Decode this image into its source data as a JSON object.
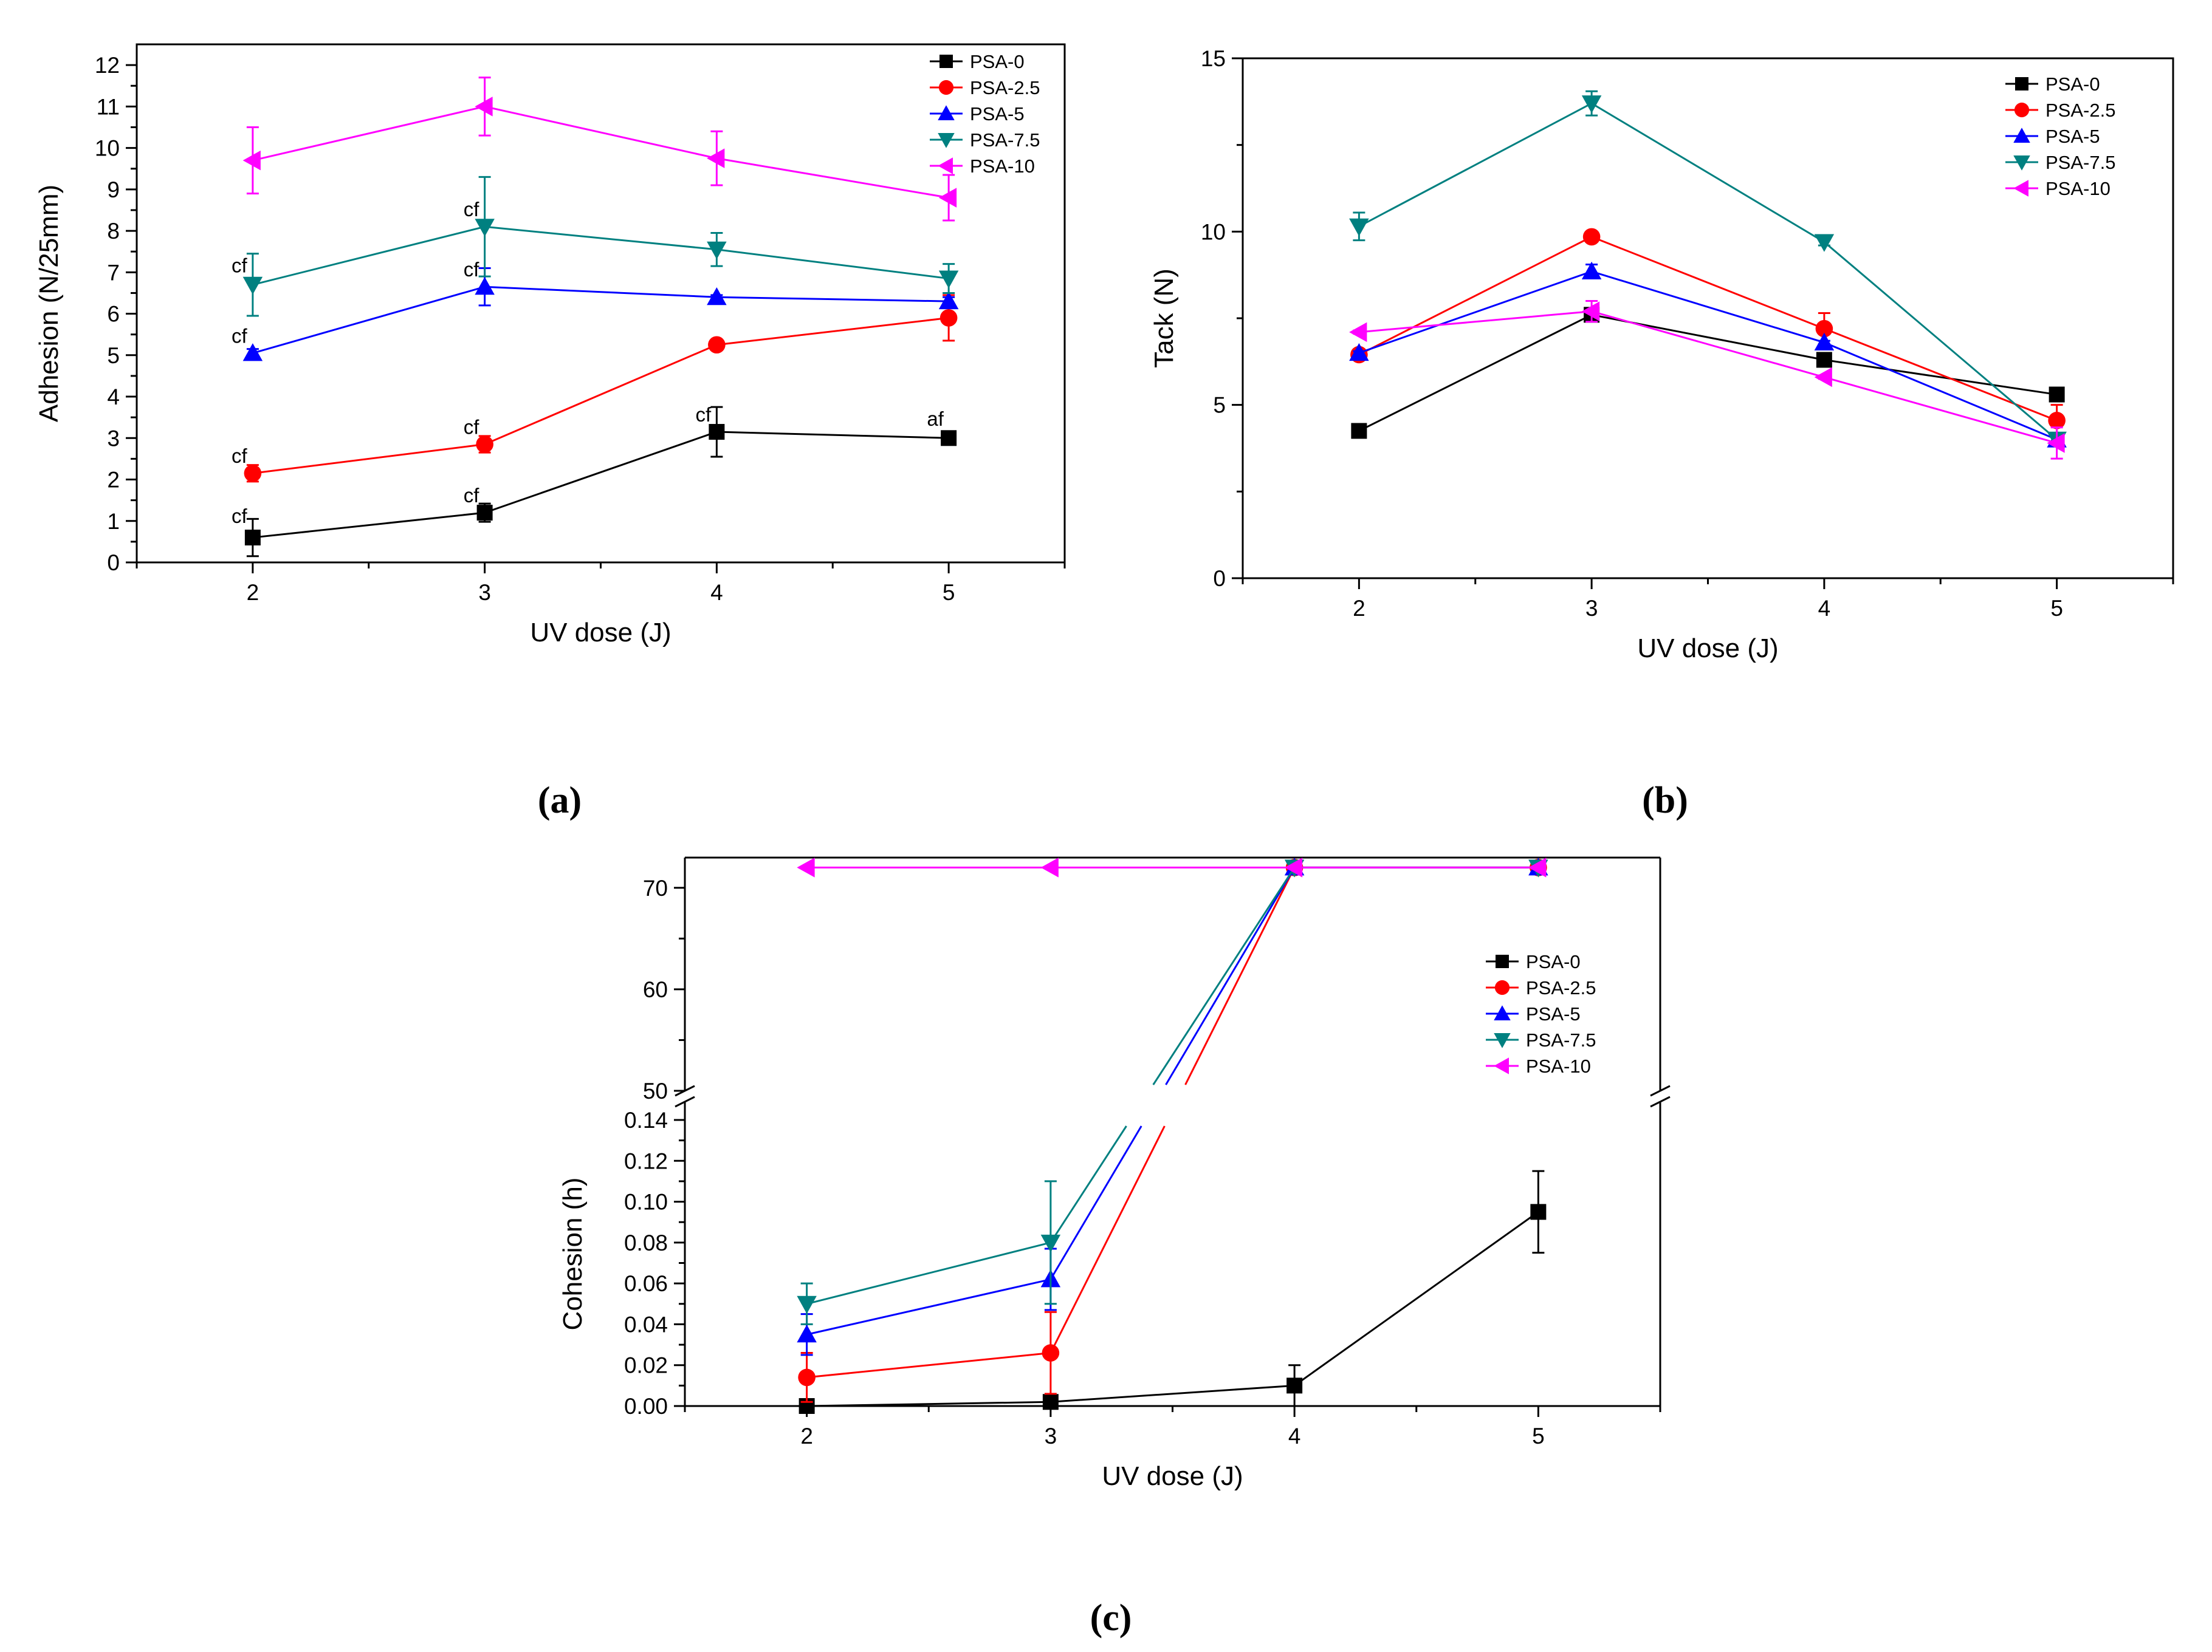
{
  "chart_data": [
    {
      "type": "line",
      "caption": "(a)",
      "xlabel": "UV dose (J)",
      "ylabel": "Adhesion (N/25mm)",
      "xlim": [
        1.5,
        5.5
      ],
      "ylim": [
        0,
        12.5
      ],
      "x_ticks": [
        2,
        3,
        4,
        5
      ],
      "y_ticks": [
        0,
        1,
        2,
        3,
        4,
        5,
        6,
        7,
        8,
        9,
        10,
        11,
        12
      ],
      "x": [
        2,
        3,
        4,
        5
      ],
      "legend_position": "top-right",
      "series": [
        {
          "name": "PSA-0",
          "color": "#000000",
          "marker": "square",
          "values": [
            0.6,
            1.2,
            3.15,
            3.0
          ],
          "errors": [
            0.45,
            0.22,
            0.6,
            0.05
          ]
        },
        {
          "name": "PSA-2.5",
          "color": "#ff0000",
          "marker": "circle",
          "values": [
            2.15,
            2.85,
            5.25,
            5.9
          ],
          "errors": [
            0.2,
            0.2,
            0.05,
            0.55
          ]
        },
        {
          "name": "PSA-5",
          "color": "#0000ff",
          "marker": "triangle-up",
          "values": [
            5.05,
            6.65,
            6.4,
            6.3
          ],
          "errors": [
            0.1,
            0.45,
            0.05,
            0.1
          ]
        },
        {
          "name": "PSA-7.5",
          "color": "#008080",
          "marker": "triangle-down",
          "values": [
            6.7,
            8.1,
            7.55,
            6.85
          ],
          "errors": [
            0.75,
            1.2,
            0.4,
            0.35
          ]
        },
        {
          "name": "PSA-10",
          "color": "#ff00ff",
          "marker": "triangle-left",
          "values": [
            9.7,
            11.0,
            9.75,
            8.8
          ],
          "errors": [
            0.8,
            0.7,
            0.65,
            0.55
          ]
        }
      ],
      "annotations": [
        {
          "text": "cf",
          "x": 2,
          "y": 0.95
        },
        {
          "text": "cf",
          "x": 3,
          "y": 1.45
        },
        {
          "text": "cf",
          "x": 4,
          "y": 3.4
        },
        {
          "text": "af",
          "x": 5,
          "y": 3.3
        },
        {
          "text": "cf",
          "x": 2,
          "y": 2.4
        },
        {
          "text": "cf",
          "x": 3,
          "y": 3.1
        },
        {
          "text": "cf",
          "x": 2,
          "y": 5.3
        },
        {
          "text": "cf",
          "x": 3,
          "y": 6.9
        },
        {
          "text": "cf",
          "x": 2,
          "y": 7.0
        },
        {
          "text": "cf",
          "x": 3,
          "y": 8.35
        }
      ]
    },
    {
      "type": "line",
      "caption": "(b)",
      "xlabel": "UV dose (J)",
      "ylabel": "Tack (N)",
      "xlim": [
        1.5,
        5.5
      ],
      "ylim": [
        0,
        15
      ],
      "x_ticks": [
        2,
        3,
        4,
        5
      ],
      "y_ticks": [
        0,
        5,
        10,
        15
      ],
      "x": [
        2,
        3,
        4,
        5
      ],
      "legend_position": "top-right",
      "series": [
        {
          "name": "PSA-0",
          "color": "#000000",
          "marker": "square",
          "values": [
            4.25,
            7.6,
            6.3,
            5.3
          ],
          "errors": [
            0.05,
            0.1,
            0.05,
            0.05
          ]
        },
        {
          "name": "PSA-2.5",
          "color": "#ff0000",
          "marker": "circle",
          "values": [
            6.45,
            9.85,
            7.2,
            4.55
          ],
          "errors": [
            0.05,
            0.05,
            0.45,
            0.45
          ]
        },
        {
          "name": "PSA-5",
          "color": "#0000ff",
          "marker": "triangle-up",
          "values": [
            6.5,
            8.85,
            6.8,
            4.0
          ],
          "errors": [
            0.05,
            0.2,
            0.05,
            0.05
          ]
        },
        {
          "name": "PSA-7.5",
          "color": "#008080",
          "marker": "triangle-down",
          "values": [
            10.15,
            13.7,
            9.7,
            4.0
          ],
          "errors": [
            0.4,
            0.35,
            0.1,
            0.05
          ]
        },
        {
          "name": "PSA-10",
          "color": "#ff00ff",
          "marker": "triangle-left",
          "values": [
            7.1,
            7.7,
            5.8,
            3.9
          ],
          "errors": [
            0.05,
            0.3,
            0.05,
            0.45
          ]
        }
      ]
    },
    {
      "type": "line",
      "caption": "(c)",
      "xlabel": "UV dose (J)",
      "ylabel": "Cohesion (h)",
      "xlim": [
        1.5,
        5.5
      ],
      "y_axis_break": true,
      "ylim_lower": [
        0,
        0.14
      ],
      "ylim_upper": [
        50,
        72.5
      ],
      "y_ticks_lower": [
        "0.00",
        "0.02",
        "0.04",
        "0.06",
        "0.08",
        "0.10",
        "0.12",
        "0.14"
      ],
      "y_ticks_upper": [
        "50",
        "60",
        "70"
      ],
      "x_ticks": [
        2,
        3,
        4,
        5
      ],
      "x": [
        2,
        3,
        4,
        5
      ],
      "legend_position": "right",
      "series": [
        {
          "name": "PSA-0",
          "color": "#000000",
          "marker": "square",
          "values": [
            0.0,
            0.002,
            0.01,
            0.095
          ],
          "errors": [
            0.0,
            0.0,
            0.01,
            0.02
          ]
        },
        {
          "name": "PSA-2.5",
          "color": "#ff0000",
          "marker": "circle",
          "values": [
            0.014,
            0.026,
            72,
            72
          ],
          "errors": [
            0.012,
            0.02,
            0,
            0
          ]
        },
        {
          "name": "PSA-5",
          "color": "#0000ff",
          "marker": "triangle-up",
          "values": [
            0.035,
            0.062,
            72,
            72
          ],
          "errors": [
            0.01,
            0.015,
            0,
            0
          ]
        },
        {
          "name": "PSA-7.5",
          "color": "#008080",
          "marker": "triangle-down",
          "values": [
            0.05,
            0.08,
            72,
            72
          ],
          "errors": [
            0.01,
            0.03,
            0,
            0
          ]
        },
        {
          "name": "PSA-10",
          "color": "#ff00ff",
          "marker": "triangle-left",
          "values": [
            72,
            72,
            72,
            72
          ],
          "errors": [
            0,
            0,
            0,
            0
          ]
        }
      ]
    }
  ]
}
